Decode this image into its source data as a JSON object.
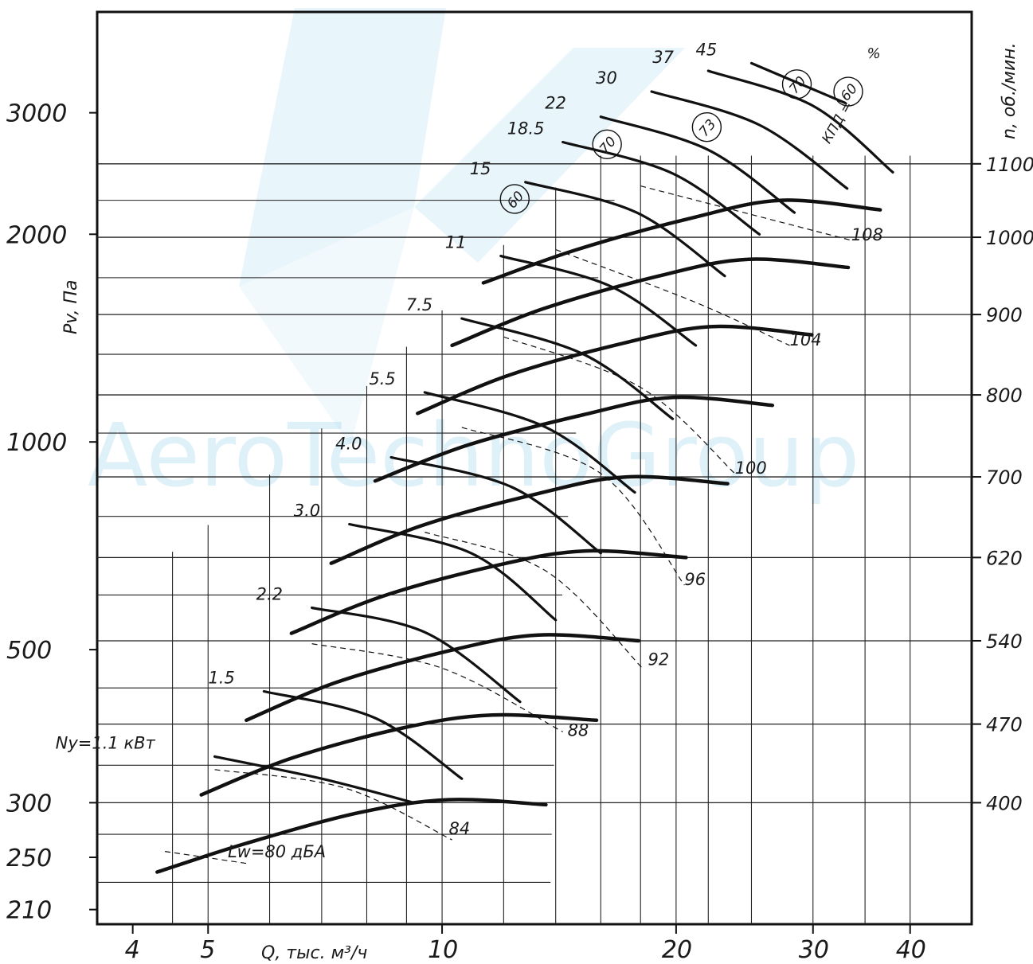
{
  "watermark": {
    "text": "AeroTechnoGroup",
    "color": "#1e9ad6"
  },
  "chart_data": {
    "type": "line",
    "xlabel": "Q, тыс. м³/ч",
    "ylabel": "Pv, Па",
    "right_label": "n, об./мин.",
    "x_scale": "log",
    "y_scale": "log",
    "xlim": [
      3.6,
      48
    ],
    "ylim": [
      200,
      4200
    ],
    "x_ticks": [
      {
        "value": 4,
        "label": "4"
      },
      {
        "value": 5,
        "label": "5"
      },
      {
        "value": 10,
        "label": "10"
      },
      {
        "value": 20,
        "label": "20"
      },
      {
        "value": 30,
        "label": "30"
      },
      {
        "value": 40,
        "label": "40"
      }
    ],
    "y_ticks": [
      {
        "value": 210,
        "label": "210"
      },
      {
        "value": 250,
        "label": "250"
      },
      {
        "value": 300,
        "label": "300"
      },
      {
        "value": 500,
        "label": "500"
      },
      {
        "value": 1000,
        "label": "1000"
      },
      {
        "value": 2000,
        "label": "2000"
      },
      {
        "value": 3000,
        "label": "3000"
      }
    ],
    "speed_ticks": [
      {
        "pv": 300,
        "label": "400"
      },
      {
        "pv": 390,
        "label": "470"
      },
      {
        "pv": 515,
        "label": "540"
      },
      {
        "pv": 680,
        "label": "620"
      },
      {
        "pv": 890,
        "label": "700"
      },
      {
        "pv": 1170,
        "label": "800"
      },
      {
        "pv": 1530,
        "label": "900"
      },
      {
        "pv": 1980,
        "label": "1000"
      },
      {
        "pv": 2530,
        "label": "1100"
      }
    ],
    "speed_curves": [
      {
        "rpm": 400,
        "q": [
          4.3,
          5.6,
          7.8,
          10.2,
          13.6
        ],
        "pv": [
          238,
          262,
          290,
          303,
          298
        ]
      },
      {
        "rpm": 470,
        "q": [
          4.9,
          6.4,
          8.9,
          11.6,
          15.8
        ],
        "pv": [
          308,
          348,
          385,
          402,
          395
        ]
      },
      {
        "rpm": 540,
        "q": [
          5.6,
          7.3,
          10.2,
          13.3,
          17.9
        ],
        "pv": [
          395,
          448,
          498,
          525,
          515
        ]
      },
      {
        "rpm": 620,
        "q": [
          6.4,
          8.4,
          11.8,
          15.3,
          20.6
        ],
        "pv": [
          528,
          598,
          663,
          695,
          680
        ]
      },
      {
        "rpm": 700,
        "q": [
          7.2,
          9.4,
          13.3,
          17.3,
          23.3
        ],
        "pv": [
          667,
          756,
          842,
          890,
          870
        ]
      },
      {
        "rpm": 800,
        "q": [
          8.2,
          10.8,
          15.2,
          19.8,
          26.6
        ],
        "pv": [
          878,
          990,
          1095,
          1160,
          1130
        ]
      },
      {
        "rpm": 900,
        "q": [
          9.3,
          12.2,
          17.1,
          22.3,
          29.9
        ],
        "pv": [
          1100,
          1250,
          1390,
          1470,
          1430
        ]
      },
      {
        "rpm": 1000,
        "q": [
          10.3,
          13.5,
          19.0,
          24.8,
          33.3
        ],
        "pv": [
          1380,
          1560,
          1740,
          1840,
          1790
        ]
      },
      {
        "rpm": 1100,
        "q": [
          11.3,
          14.9,
          20.9,
          27.3,
          36.6
        ],
        "pv": [
          1700,
          1900,
          2110,
          2240,
          2170
        ]
      }
    ],
    "power_curves": [
      {
        "label": "Ny=1.1 кВт",
        "q": [
          5.1,
          7.0,
          9.2
        ],
        "pv": [
          350,
          325,
          300
        ]
      },
      {
        "label": "1.5",
        "q": [
          5.9,
          8.2,
          10.6
        ],
        "pv": [
          435,
          398,
          325
        ]
      },
      {
        "label": "2.2",
        "q": [
          6.8,
          9.5,
          12.6
        ],
        "pv": [
          575,
          530,
          420
        ]
      },
      {
        "label": "3.0",
        "q": [
          7.6,
          10.9,
          14.0
        ],
        "pv": [
          760,
          690,
          552
        ]
      },
      {
        "label": "4.0",
        "q": [
          8.6,
          12.3,
          16.0
        ],
        "pv": [
          950,
          860,
          690
        ]
      },
      {
        "label": "5.5",
        "q": [
          9.5,
          13.6,
          17.7
        ],
        "pv": [
          1180,
          1050,
          845
        ]
      },
      {
        "label": "7.5",
        "q": [
          10.6,
          15.2,
          19.8
        ],
        "pv": [
          1510,
          1340,
          1080
        ]
      },
      {
        "label": "11",
        "q": [
          11.9,
          16.5,
          21.2
        ],
        "pv": [
          1860,
          1680,
          1380
        ]
      },
      {
        "label": "15",
        "q": [
          12.8,
          17.8,
          23.1
        ],
        "pv": [
          2380,
          2150,
          1740
        ]
      },
      {
        "label": "18.5",
        "q": [
          14.3,
          19.8,
          25.6
        ],
        "pv": [
          2720,
          2450,
          2000
        ]
      },
      {
        "label": "22",
        "q": [
          16.0,
          22.0,
          28.4
        ],
        "pv": [
          2960,
          2650,
          2150
        ]
      },
      {
        "label": "30",
        "q": [
          18.6,
          25.6,
          33.2
        ],
        "pv": [
          3220,
          2880,
          2330
        ]
      },
      {
        "label": "37",
        "q": [
          22.0,
          30.0,
          38.0
        ],
        "pv": [
          3450,
          3070,
          2460
        ]
      },
      {
        "label": "45",
        "q": [
          25.0,
          33.0
        ],
        "pv": [
          3540,
          3100
        ]
      }
    ],
    "efficiency_labels": [
      {
        "value": "60",
        "q": 12.4,
        "pv": 2250
      },
      {
        "value": "70",
        "q": 16.3,
        "pv": 2700
      },
      {
        "value": "73",
        "q": 21.9,
        "pv": 2860
      },
      {
        "value": "70",
        "q": 28.6,
        "pv": 3300
      },
      {
        "value": "60",
        "q": 33.3,
        "pv": 3220
      }
    ],
    "efficiency_title": "КПД =",
    "efficiency_unit": "%",
    "noise_labels": [
      {
        "label": "Lw=80 дБА",
        "q": 5.3,
        "pv": 250
      },
      {
        "label": "84",
        "q": 10.2,
        "pv": 270
      },
      {
        "label": "88",
        "q": 14.5,
        "pv": 375
      },
      {
        "label": "92",
        "q": 18.4,
        "pv": 475
      },
      {
        "label": "96",
        "q": 20.5,
        "pv": 620
      },
      {
        "label": "100",
        "q": 23.8,
        "pv": 900
      },
      {
        "label": "104",
        "q": 28.0,
        "pv": 1380
      },
      {
        "label": "108",
        "q": 33.6,
        "pv": 1960
      }
    ],
    "grid": true
  }
}
